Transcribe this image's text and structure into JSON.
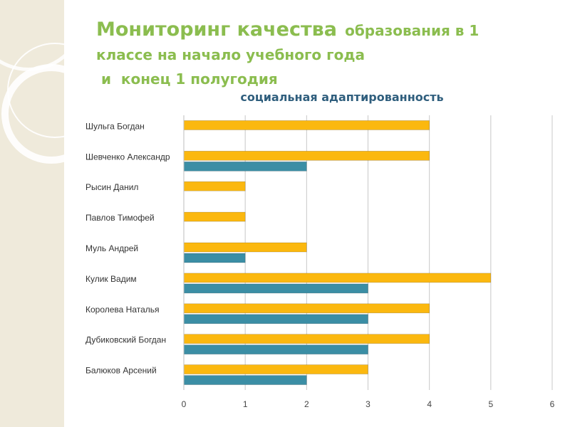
{
  "heading": {
    "line1_big": "Мониторинг качества",
    "line1_small": "образования в 1",
    "line2": "классе на начало учебного года",
    "line3": " и  конец 1 полугодия"
  },
  "chart_data": {
    "type": "bar",
    "orientation": "horizontal",
    "title": "социальная адаптированность",
    "categories": [
      "Шульга Богдан",
      "Шевченко Александр",
      "Рысин Данил",
      "Павлов Тимофей",
      "Муль Андрей",
      "Кулик Вадим",
      "Королева Наталья",
      "Дубиковский Богдан",
      "Балюков Арсений"
    ],
    "series": [
      {
        "color": "#fbb80f",
        "values": [
          4,
          4,
          1,
          1,
          2,
          5,
          4,
          4,
          3
        ]
      },
      {
        "color": "#3b8ea5",
        "values": [
          0,
          2,
          0,
          0,
          1,
          3,
          3,
          3,
          2
        ]
      }
    ],
    "xlim": [
      0,
      6
    ],
    "xticks": [
      "0",
      "1",
      "2",
      "3",
      "4",
      "5",
      "6"
    ],
    "grid": true,
    "legend": "none"
  }
}
